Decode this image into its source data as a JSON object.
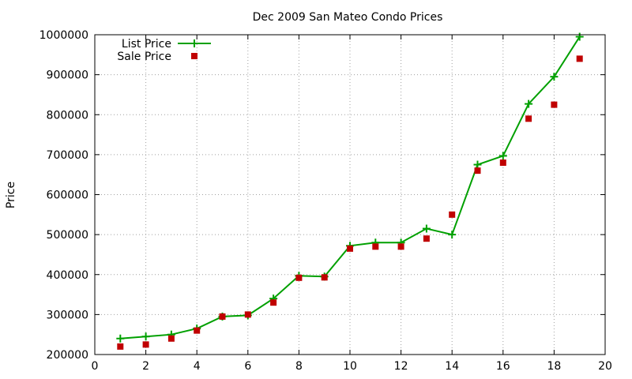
{
  "chart_data": {
    "type": "line",
    "title": "Dec 2009 San Mateo Condo Prices",
    "xlabel": "",
    "ylabel": "Price",
    "xlim": [
      0,
      20
    ],
    "ylim": [
      200000,
      1000000
    ],
    "xticks": [
      0,
      2,
      4,
      6,
      8,
      10,
      12,
      14,
      16,
      18,
      20
    ],
    "yticks": [
      200000,
      300000,
      400000,
      500000,
      600000,
      700000,
      800000,
      900000,
      1000000
    ],
    "grid": true,
    "legend_position": "top-left",
    "series": [
      {
        "name": "List Price",
        "style": "line-plus",
        "color": "#00a000",
        "x": [
          1,
          2,
          3,
          4,
          5,
          6,
          7,
          8,
          9,
          10,
          11,
          12,
          13,
          14,
          15,
          16,
          17,
          18,
          19
        ],
        "y": [
          240000,
          245000,
          250000,
          265000,
          295000,
          298000,
          340000,
          397000,
          395000,
          472000,
          480000,
          480000,
          515000,
          500000,
          675000,
          697000,
          827000,
          895000,
          995000
        ]
      },
      {
        "name": "Sale Price",
        "style": "square-points",
        "color": "#c00000",
        "x": [
          1,
          2,
          3,
          4,
          5,
          6,
          7,
          8,
          9,
          10,
          11,
          12,
          13,
          14,
          15,
          16,
          17,
          18,
          19
        ],
        "y": [
          220000,
          225000,
          240000,
          260000,
          295000,
          300000,
          330000,
          392000,
          393000,
          465000,
          470000,
          470000,
          490000,
          550000,
          660000,
          680000,
          790000,
          825000,
          940000
        ]
      }
    ]
  }
}
